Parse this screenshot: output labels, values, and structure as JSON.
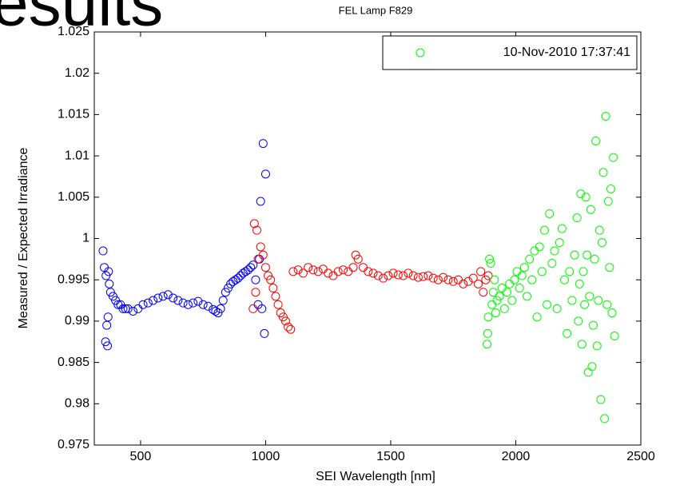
{
  "slide_title": "esults",
  "chart_data": {
    "type": "scatter",
    "title": "FEL Lamp F829",
    "xlabel": "SEI Wavelength [nm]",
    "ylabel": "Measured / Expected Irradiance",
    "xlim": [
      315,
      2500
    ],
    "ylim": [
      0.975,
      1.025
    ],
    "xticks": [
      500,
      1000,
      1500,
      2000,
      2500
    ],
    "yticks": [
      0.975,
      0.98,
      0.985,
      0.99,
      0.995,
      1,
      1.005,
      1.01,
      1.015,
      1.02,
      1.025
    ],
    "legend": "upper right",
    "series": [
      {
        "color": "#0000ff",
        "x": [
          350,
          355,
          360,
          362,
          365,
          368,
          370,
          372,
          375,
          380,
          390,
          400,
          410,
          420,
          430,
          440,
          450,
          470,
          490,
          510,
          530,
          550,
          570,
          590,
          610,
          630,
          650,
          670,
          690,
          710,
          730,
          750,
          770,
          790,
          800,
          810,
          820,
          830,
          840,
          850,
          860,
          870,
          880,
          890,
          900,
          910,
          920,
          930,
          940,
          950,
          960,
          970,
          975,
          980,
          985,
          990,
          995,
          1000
        ],
        "values": [
          0.9985,
          0.9965,
          0.9875,
          0.9955,
          0.9895,
          0.987,
          0.9905,
          0.996,
          0.9945,
          0.9935,
          0.993,
          0.9925,
          0.992,
          0.992,
          0.9915,
          0.9915,
          0.9915,
          0.9912,
          0.9915,
          0.992,
          0.9922,
          0.9925,
          0.9928,
          0.993,
          0.9932,
          0.9928,
          0.9925,
          0.9922,
          0.992,
          0.9922,
          0.9924,
          0.992,
          0.9918,
          0.9914,
          0.9912,
          0.991,
          0.9915,
          0.9925,
          0.9935,
          0.994,
          0.9945,
          0.9948,
          0.995,
          0.9952,
          0.9955,
          0.9958,
          0.996,
          0.9962,
          0.9965,
          0.9968,
          0.995,
          0.992,
          0.9975,
          1.0045,
          0.9915,
          1.0115,
          0.9885,
          1.0078
        ]
      },
      {
        "color": "#ff0000",
        "x": [
          950,
          955,
          960,
          965,
          970,
          980,
          990,
          1000,
          1010,
          1020,
          1030,
          1040,
          1050,
          1060,
          1070,
          1080,
          1090,
          1100,
          1110,
          1130,
          1150,
          1170,
          1190,
          1210,
          1230,
          1250,
          1270,
          1290,
          1310,
          1330,
          1350,
          1360,
          1370,
          1390,
          1410,
          1430,
          1450,
          1470,
          1490,
          1510,
          1530,
          1550,
          1570,
          1590,
          1610,
          1630,
          1650,
          1670,
          1690,
          1710,
          1730,
          1750,
          1770,
          1790,
          1810,
          1830,
          1850,
          1860,
          1870,
          1880,
          1890
        ],
        "values": [
          0.9915,
          1.0018,
          0.9935,
          1.001,
          0.9975,
          0.999,
          0.998,
          0.9965,
          0.9955,
          0.995,
          0.994,
          0.993,
          0.992,
          0.991,
          0.9905,
          0.99,
          0.9893,
          0.989,
          0.996,
          0.9962,
          0.9958,
          0.9965,
          0.9962,
          0.996,
          0.9963,
          0.9958,
          0.9955,
          0.996,
          0.9962,
          0.996,
          0.9965,
          0.998,
          0.9975,
          0.9965,
          0.996,
          0.9958,
          0.9955,
          0.9952,
          0.9955,
          0.9958,
          0.9956,
          0.9955,
          0.9958,
          0.9955,
          0.9953,
          0.9954,
          0.9955,
          0.9952,
          0.995,
          0.9953,
          0.995,
          0.9948,
          0.995,
          0.9945,
          0.9948,
          0.9952,
          0.9945,
          0.996,
          0.9935,
          0.995,
          0.9955
        ]
      },
      {
        "name": "10-Nov-2010 17:37:41",
        "color": "#00ff00",
        "x": [
          1885,
          1888,
          1890,
          1895,
          1900,
          1905,
          1910,
          1915,
          1920,
          1925,
          1935,
          1945,
          1955,
          1965,
          1975,
          1985,
          1995,
          2005,
          2015,
          2025,
          2035,
          2045,
          2055,
          2065,
          2075,
          2085,
          2095,
          2105,
          2115,
          2125,
          2135,
          2145,
          2155,
          2165,
          2175,
          2185,
          2195,
          2205,
          2215,
          2225,
          2235,
          2245,
          2250,
          2255,
          2260,
          2265,
          2270,
          2275,
          2280,
          2285,
          2290,
          2295,
          2300,
          2305,
          2310,
          2315,
          2320,
          2325,
          2330,
          2335,
          2340,
          2345,
          2350,
          2355,
          2360,
          2365,
          2370,
          2375,
          2380,
          2385,
          2390,
          2395
        ],
        "values": [
          0.9872,
          0.9885,
          0.9905,
          0.9975,
          0.997,
          0.992,
          0.9935,
          0.995,
          0.991,
          0.9925,
          0.993,
          0.994,
          0.9915,
          0.9935,
          0.9945,
          0.9925,
          0.995,
          0.996,
          0.994,
          0.9955,
          0.9965,
          0.993,
          0.9975,
          0.995,
          0.9985,
          0.9905,
          0.999,
          0.996,
          1.001,
          0.992,
          1.003,
          0.997,
          0.9985,
          0.9915,
          0.9995,
          1.0012,
          0.995,
          0.9885,
          0.996,
          0.9925,
          0.998,
          1.0025,
          0.99,
          0.9945,
          1.0054,
          0.9872,
          0.996,
          0.992,
          1.005,
          0.998,
          0.9838,
          0.993,
          1.0035,
          0.9845,
          0.9895,
          0.9975,
          1.0118,
          0.987,
          0.9925,
          1.001,
          0.9805,
          0.9995,
          1.008,
          0.9782,
          1.0148,
          0.992,
          1.0045,
          0.9965,
          1.006,
          0.991,
          1.0098,
          0.9882
        ]
      }
    ]
  }
}
